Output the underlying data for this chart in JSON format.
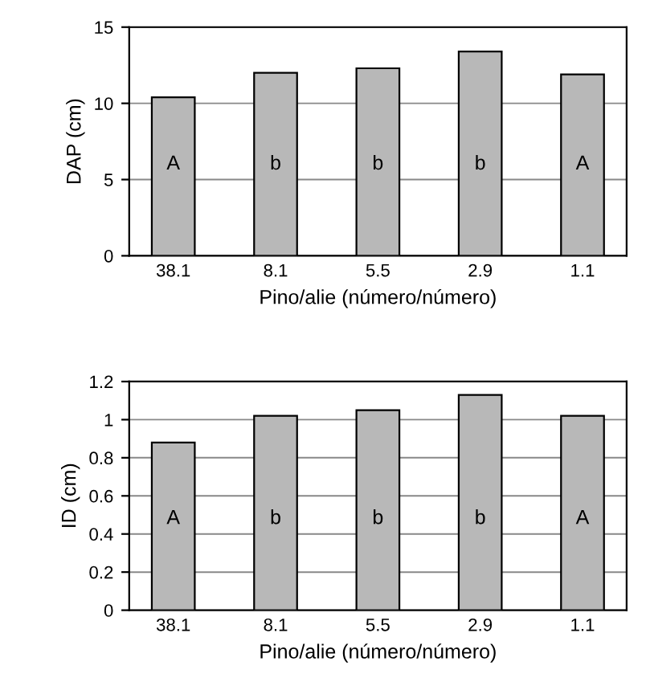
{
  "chart_data": [
    {
      "type": "bar",
      "ylabel": "DAP (cm)",
      "xlabel": "Pino/alie (número/número)",
      "categories": [
        "38.1",
        "8.1",
        "5.5",
        "2.9",
        "1.1"
      ],
      "series": [
        {
          "color": "#b8b8b8",
          "values": [
            10.4,
            12.0,
            12.3,
            13.4,
            11.9
          ]
        }
      ],
      "ylim": [
        0,
        15
      ],
      "yticks": [
        0,
        5,
        10,
        15
      ],
      "grid": "y",
      "annotations": [
        "A",
        "b",
        "b",
        "b",
        "A"
      ]
    },
    {
      "type": "bar",
      "ylabel": "ID (cm)",
      "xlabel": "Pino/alie (número/número)",
      "categories": [
        "38.1",
        "8.1",
        "5.5",
        "2.9",
        "1.1"
      ],
      "series": [
        {
          "color": "#b8b8b8",
          "values": [
            0.88,
            1.02,
            1.05,
            1.13,
            1.02
          ]
        }
      ],
      "ylim": [
        0,
        1.2
      ],
      "yticks": [
        0,
        0.2,
        0.4,
        0.6,
        0.8,
        1,
        1.2
      ],
      "grid": "y",
      "annotations": [
        "A",
        "b",
        "b",
        "b",
        "A"
      ]
    }
  ]
}
